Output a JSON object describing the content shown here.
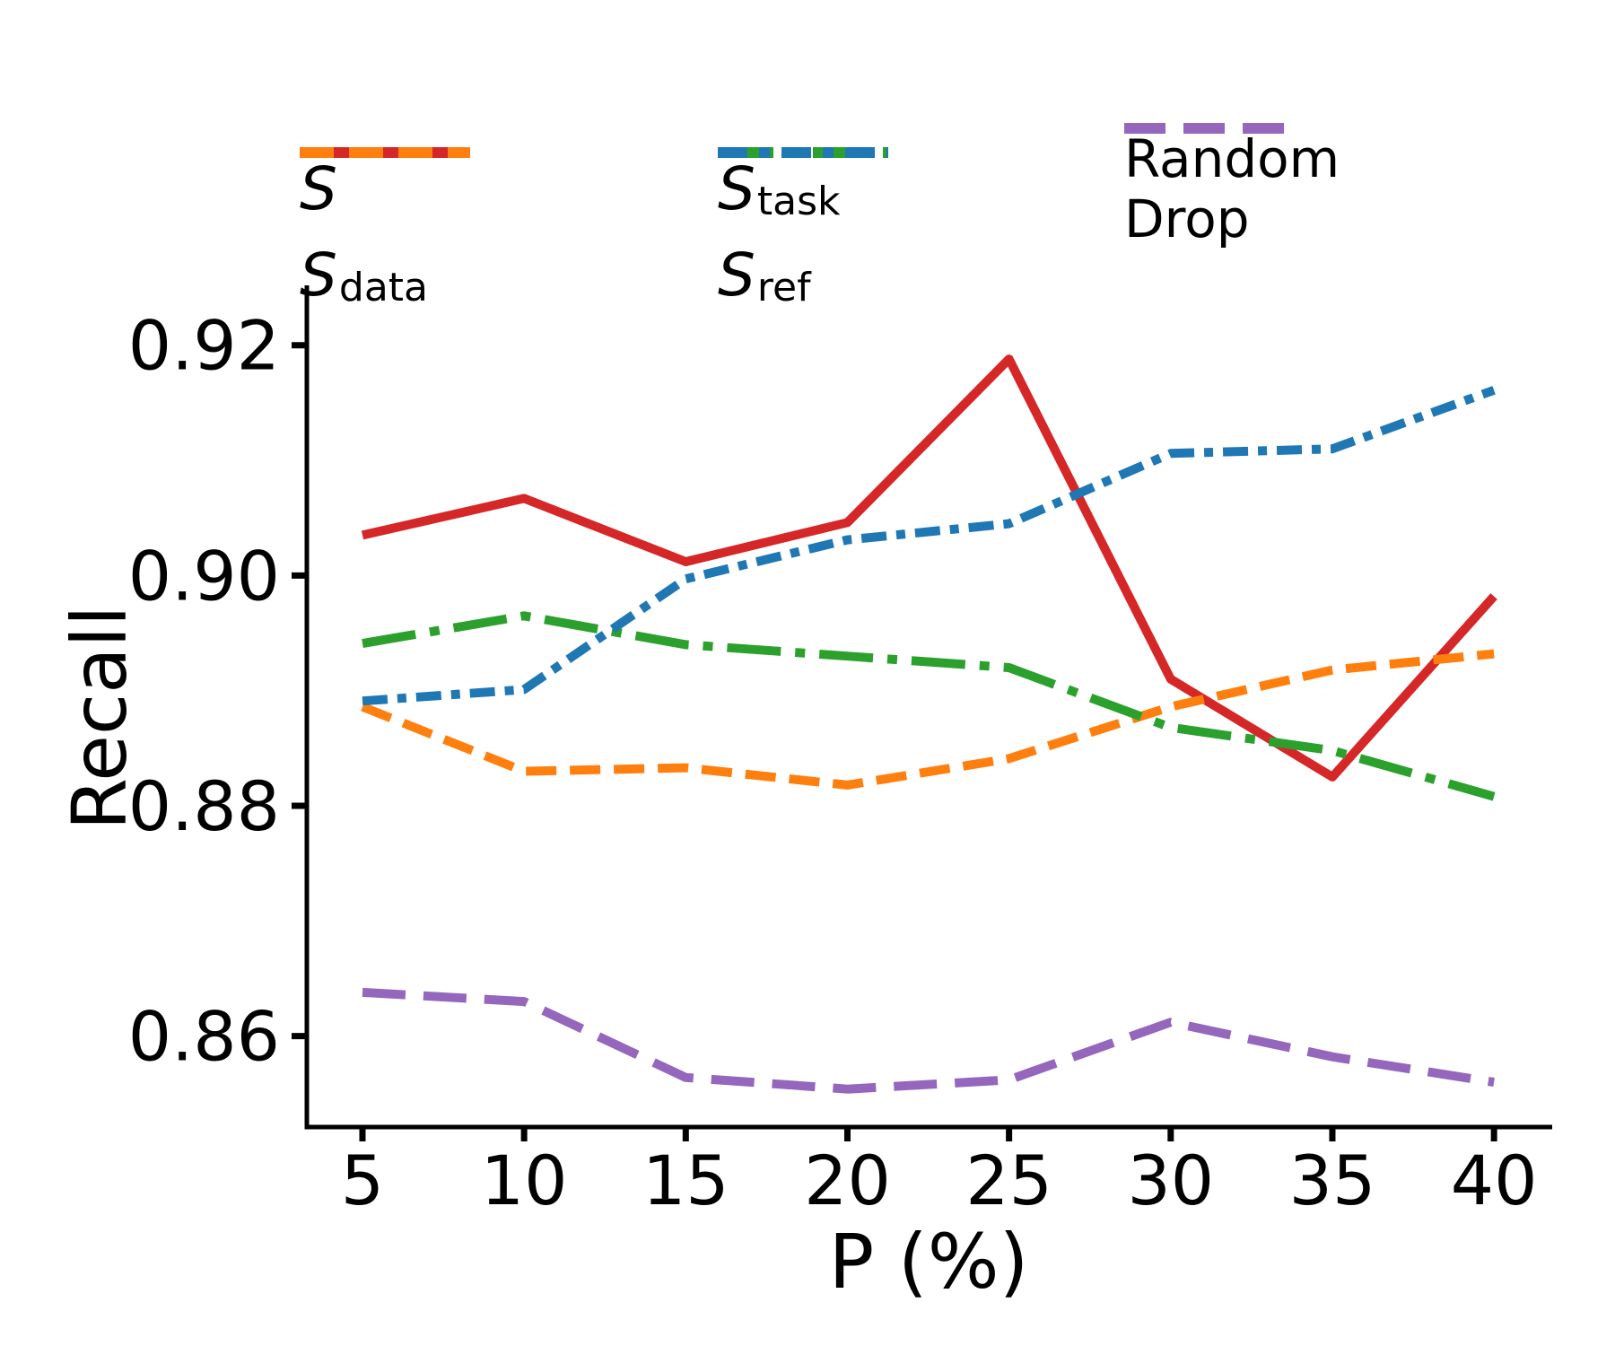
{
  "figure": {
    "background": "#ffffff",
    "axis_color": "#000000"
  },
  "chart_data": {
    "type": "line",
    "title": "",
    "xlabel": "P (%)",
    "ylabel": "Recall",
    "x": [
      5,
      10,
      15,
      20,
      25,
      30,
      35,
      40
    ],
    "xtick_labels": [
      "5",
      "10",
      "15",
      "20",
      "25",
      "30",
      "35",
      "40"
    ],
    "ytick_values": [
      0.92,
      0.9,
      0.88,
      0.86
    ],
    "ytick_labels": [
      "0.92",
      "0.90",
      "0.88",
      "0.86"
    ],
    "xlim": [
      3.28,
      41.8
    ],
    "ylim": [
      0.8521,
      0.9252
    ],
    "grid": false,
    "legend_position": "top",
    "series": [
      {
        "key": "s",
        "label_main": "S",
        "label_sub": "",
        "color": "#d62728",
        "linestyle": "solid",
        "dash": [],
        "legend_dash": [],
        "values": [
          0.9035,
          0.9067,
          0.9012,
          0.9046,
          0.9188,
          0.891,
          0.8825,
          0.8982
        ]
      },
      {
        "key": "s_data",
        "label_main": "S",
        "label_sub": "data",
        "color": "#ff7f0e",
        "linestyle": "dashed",
        "dash": [
          34,
          15
        ],
        "legend_dash": [
          38,
          17
        ],
        "values": [
          0.8886,
          0.883,
          0.8833,
          0.8818,
          0.8841,
          0.8886,
          0.8918,
          0.8932
        ]
      },
      {
        "key": "s_task",
        "label_main": "S",
        "label_sub": "task",
        "color": "#2ca02c",
        "linestyle": "dashdot",
        "dash": [
          60,
          16,
          11,
          16
        ],
        "legend_dash": [
          62,
          16,
          12,
          16
        ],
        "values": [
          0.8941,
          0.8965,
          0.894,
          0.893,
          0.892,
          0.8868,
          0.8848,
          0.8808
        ]
      },
      {
        "key": "s_ref",
        "label_main": "S",
        "label_sub": "ref",
        "color": "#1f77b4",
        "linestyle": "densely-dashdot",
        "dash": [
          28,
          11,
          10,
          11
        ],
        "legend_dash": [
          33,
          13,
          12,
          13
        ],
        "values": [
          0.8891,
          0.8901,
          0.8997,
          0.9031,
          0.9045,
          0.9106,
          0.911,
          0.9161
        ]
      },
      {
        "key": "random_drop",
        "label_lines": [
          "Random",
          "Drop"
        ],
        "color": "#9467bd",
        "linestyle": "dashed",
        "dash": [
          48,
          20
        ],
        "legend_dash": [
          46,
          20
        ],
        "values": [
          0.8638,
          0.863,
          0.8564,
          0.8554,
          0.8562,
          0.8612,
          0.8582,
          0.856
        ]
      }
    ],
    "legend_columns": [
      [
        "s",
        "s_data"
      ],
      [
        "s_task",
        "s_ref"
      ],
      [
        "random_drop"
      ]
    ]
  }
}
